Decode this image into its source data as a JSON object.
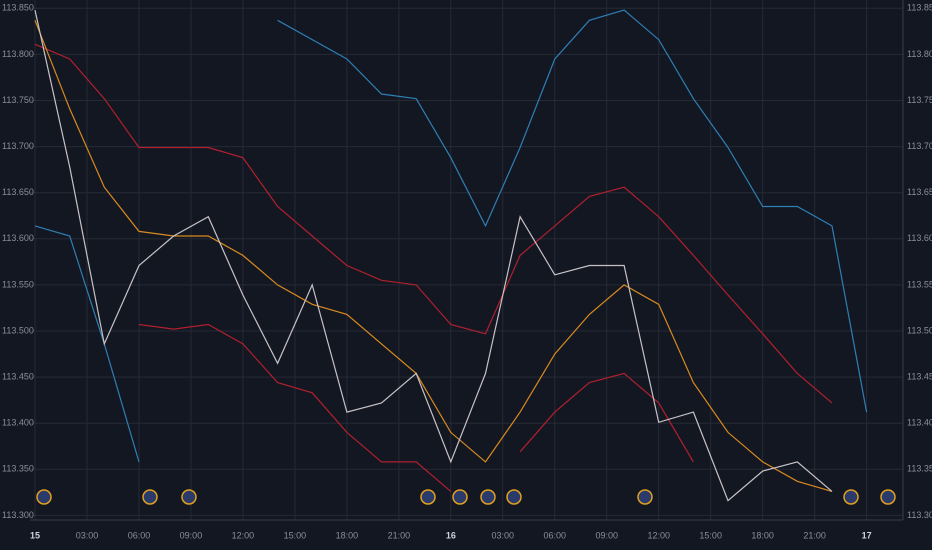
{
  "chart_data": {
    "type": "line",
    "x": [
      0,
      2,
      4,
      6,
      8,
      10,
      12,
      14,
      16,
      18,
      20,
      22,
      24,
      26,
      28,
      30,
      32,
      34,
      36,
      38,
      40,
      42,
      44,
      46,
      48
    ],
    "xlim": [
      -0.29,
      50.1
    ],
    "xticks": [
      {
        "value": 0,
        "label": "15"
      },
      {
        "value": 3,
        "label": "03:00"
      },
      {
        "value": 6,
        "label": "06:00"
      },
      {
        "value": 9,
        "label": "09:00"
      },
      {
        "value": 12,
        "label": "12:00"
      },
      {
        "value": 15,
        "label": "15:00"
      },
      {
        "value": 18,
        "label": "18:00"
      },
      {
        "value": 21,
        "label": "21:00"
      },
      {
        "value": 24,
        "label": "16"
      },
      {
        "value": 27,
        "label": "03:00"
      },
      {
        "value": 30,
        "label": "06:00"
      },
      {
        "value": 33,
        "label": "09:00"
      },
      {
        "value": 36,
        "label": "12:00"
      },
      {
        "value": 39,
        "label": "15:00"
      },
      {
        "value": 42,
        "label": "18:00"
      },
      {
        "value": 45,
        "label": "21:00"
      },
      {
        "value": 48,
        "label": "17"
      }
    ],
    "ylim": [
      113.295,
      113.859
    ],
    "yticks": [
      {
        "value": 113.3,
        "label": "113.300"
      },
      {
        "value": 113.35,
        "label": "113.350"
      },
      {
        "value": 113.4,
        "label": "113.400"
      },
      {
        "value": 113.45,
        "label": "113.450"
      },
      {
        "value": 113.5,
        "label": "113.500"
      },
      {
        "value": 113.55,
        "label": "113.550"
      },
      {
        "value": 113.6,
        "label": "113.600"
      },
      {
        "value": 113.65,
        "label": "113.650"
      },
      {
        "value": 113.7,
        "label": "113.700"
      },
      {
        "value": 113.75,
        "label": "113.750"
      },
      {
        "value": 113.8,
        "label": "113.800"
      },
      {
        "value": 113.85,
        "label": "113.850"
      }
    ],
    "grid": true,
    "series": [
      {
        "color": "#2e7fb5",
        "values": [
          null,
          null,
          null,
          null,
          null,
          null,
          null,
          113.837,
          113.816,
          113.795,
          113.757,
          113.752,
          113.688,
          113.614,
          113.699,
          113.795,
          113.837,
          113.848,
          113.816,
          113.752,
          113.699,
          113.635,
          113.635,
          113.614,
          113.412
        ]
      },
      {
        "color": "#2e7fb5",
        "values": [
          113.614,
          113.603,
          113.486,
          113.358,
          null,
          null,
          null,
          null,
          null,
          null,
          null,
          null,
          null,
          null,
          null,
          null,
          null,
          null,
          null,
          null,
          null,
          null,
          null,
          null,
          null
        ]
      },
      {
        "color": "#b0202e",
        "values": [
          113.811,
          113.795,
          113.752,
          113.699,
          113.699,
          113.699,
          113.688,
          113.635,
          113.603,
          113.571,
          113.555,
          113.55,
          113.507,
          113.497,
          113.582,
          113.614,
          113.646,
          113.656,
          113.624,
          113.582,
          113.539,
          113.497,
          113.454,
          113.422,
          null
        ]
      },
      {
        "color": "#b0202e",
        "values": [
          null,
          null,
          null,
          113.507,
          113.502,
          113.507,
          113.486,
          113.444,
          113.433,
          113.39,
          113.358,
          113.358,
          113.326,
          null,
          113.369,
          113.412,
          113.444,
          113.454,
          113.422,
          113.358,
          null,
          null,
          null,
          null,
          null
        ]
      },
      {
        "color": "#d98a1e",
        "values": [
          113.837,
          113.741,
          113.656,
          113.608,
          113.603,
          113.603,
          113.582,
          113.55,
          113.529,
          113.518,
          113.486,
          113.454,
          113.39,
          113.358,
          113.412,
          113.475,
          113.518,
          113.55,
          113.529,
          113.444,
          113.39,
          113.358,
          113.337,
          113.326,
          null
        ]
      },
      {
        "color": "#c8c2c6",
        "values": [
          113.848,
          113.678,
          113.486,
          113.571,
          113.603,
          113.624,
          113.539,
          113.465,
          113.55,
          113.412,
          113.422,
          113.454,
          113.358,
          113.454,
          113.624,
          113.561,
          113.571,
          113.571,
          113.401,
          113.412,
          113.316,
          113.348,
          113.358,
          113.326,
          null
        ]
      }
    ]
  }
}
